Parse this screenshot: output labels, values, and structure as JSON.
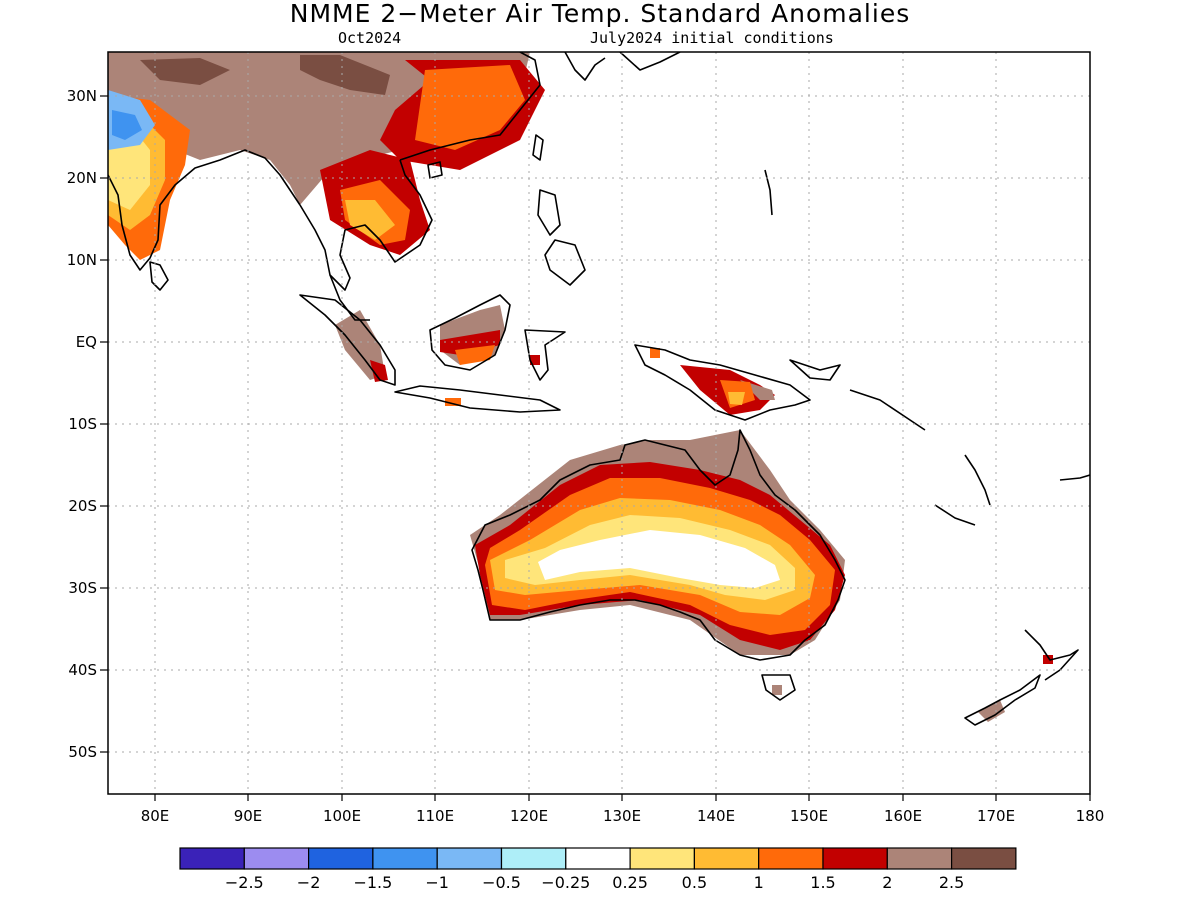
{
  "title": "NMME 2−Meter Air Temp. Standard Anomalies",
  "subtitle_left": "Oct2024",
  "subtitle_right": "July2024 initial conditions",
  "lat_labels": [
    "30N",
    "20N",
    "10N",
    "EQ",
    "10S",
    "20S",
    "30S",
    "40S",
    "50S"
  ],
  "lat_values": [
    30,
    20,
    10,
    0,
    -10,
    -20,
    -30,
    -40,
    -50
  ],
  "lon_labels": [
    "80E",
    "90E",
    "100E",
    "110E",
    "120E",
    "130E",
    "140E",
    "150E",
    "160E",
    "170E",
    "180"
  ],
  "lon_values": [
    80,
    90,
    100,
    110,
    120,
    130,
    140,
    150,
    160,
    170,
    180
  ],
  "lon_range": [
    75,
    180
  ],
  "lat_range": [
    -55,
    35
  ],
  "colorbar": {
    "colors": [
      "#3a22b8",
      "#9c8cf0",
      "#1f63e0",
      "#3f93f0",
      "#7ab8f5",
      "#aeeef8",
      "#ffffff",
      "#ffe57a",
      "#ffbb33",
      "#ff6a0a",
      "#c20000",
      "#ac8478",
      "#7a4e42"
    ],
    "labels": [
      "−2.5",
      "−2",
      "−1.5",
      "−1",
      "−0.5",
      "−0.25",
      "0.25",
      "0.5",
      "1",
      "1.5",
      "2",
      "2.5"
    ]
  }
}
